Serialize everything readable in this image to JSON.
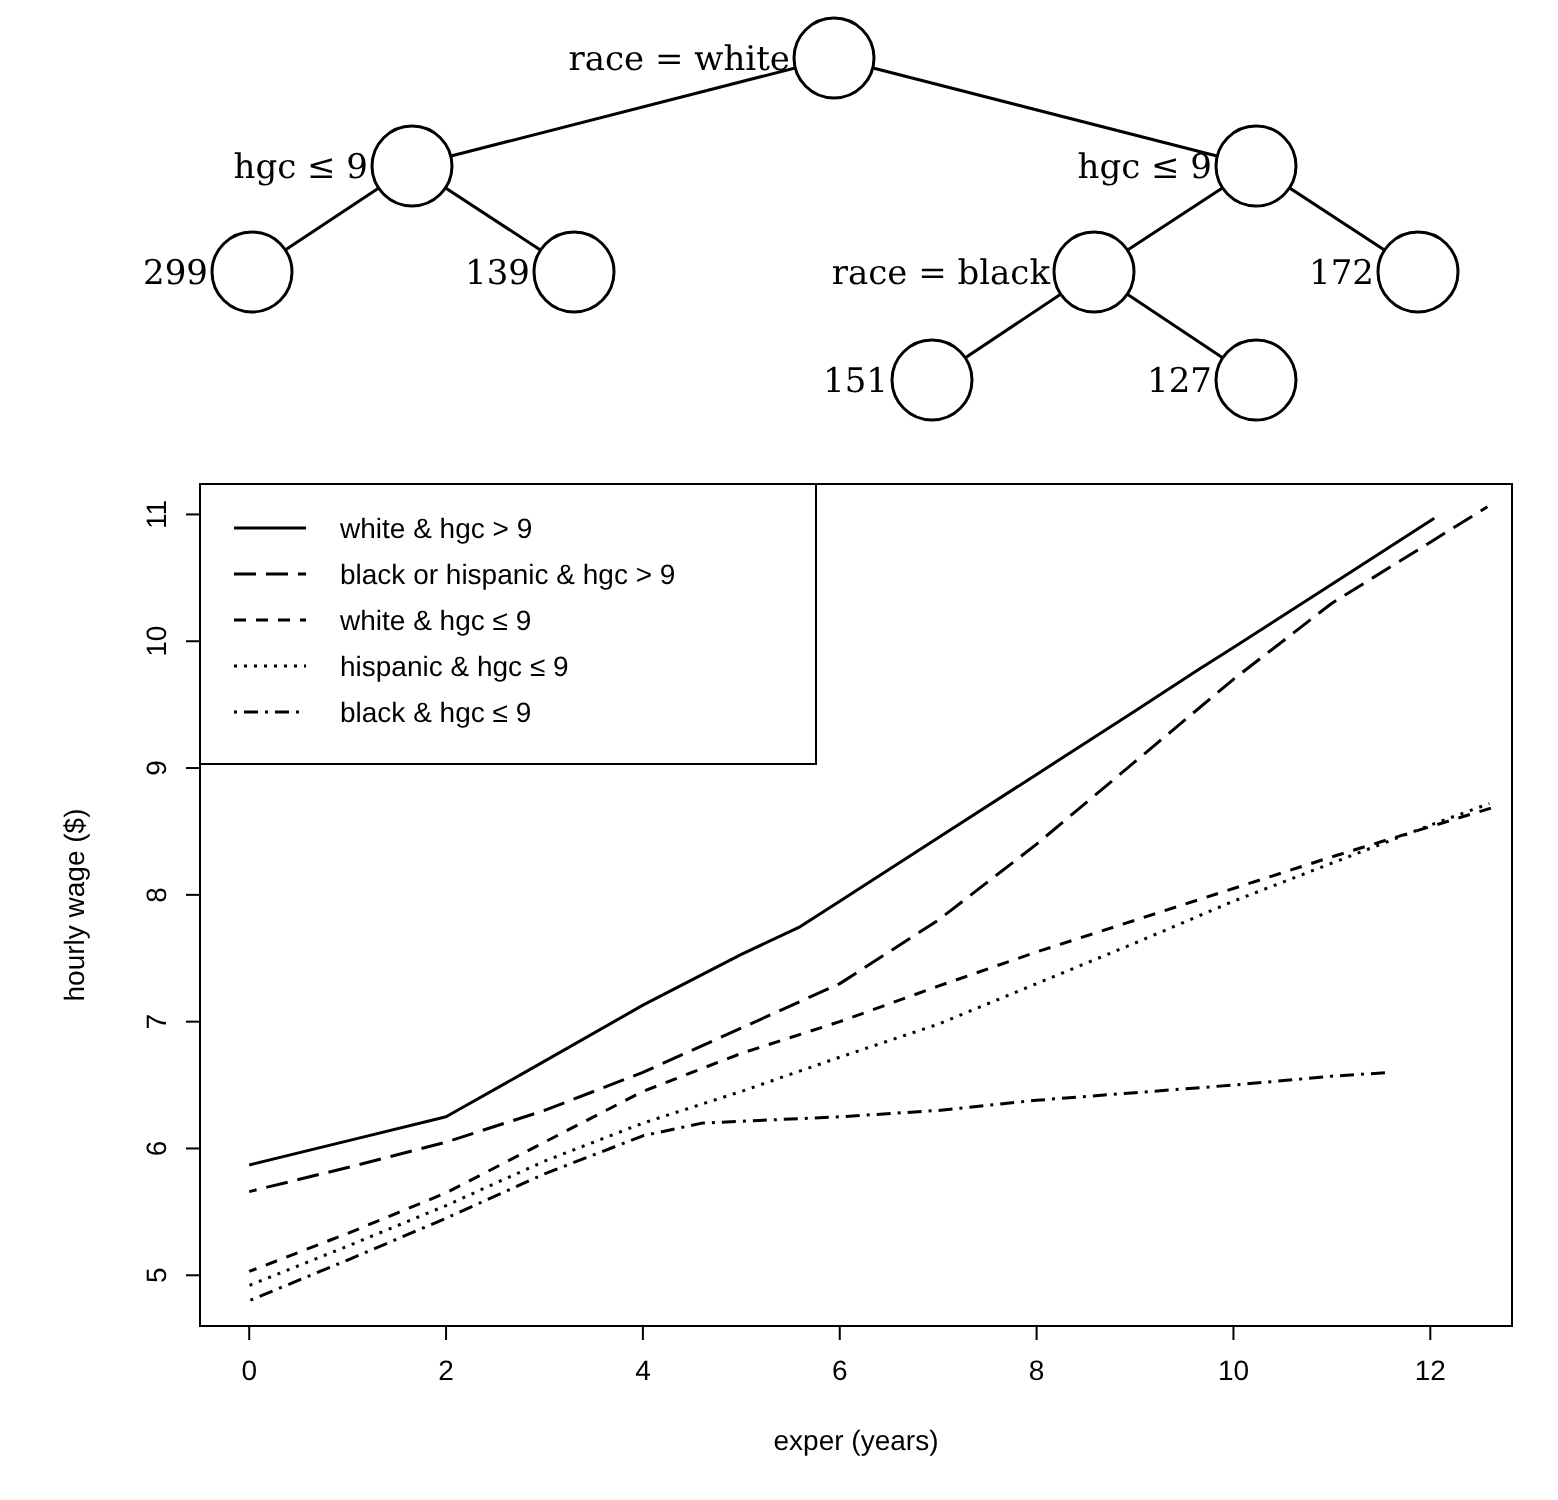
{
  "chart_data": {
    "type": "line",
    "xlabel": "exper (years)",
    "ylabel": "hourly wage ($)",
    "xlim": [
      -0.5,
      12.83
    ],
    "xticks": [
      0,
      2,
      4,
      6,
      8,
      10,
      12
    ],
    "ylim": [
      4.6,
      11.24
    ],
    "yticks": [
      5,
      6,
      7,
      8,
      9,
      10,
      11
    ],
    "legend": "top left",
    "grid": false,
    "marker": "none",
    "annotations": [
      "race = white",
      "hgc ≤ 9",
      "hgc ≤ 9",
      "299",
      "139",
      "race = black",
      "172",
      "151",
      "127"
    ],
    "series": [
      {
        "name": "white & hgc > 9",
        "color": "#000000",
        "line_style": "solid",
        "x": [
          0,
          1,
          2,
          2.8,
          4,
          5,
          5.6,
          6,
          7,
          8,
          9,
          9.65,
          10,
          11,
          12.04
        ],
        "values": [
          5.87,
          6.06,
          6.25,
          6.6,
          7.13,
          7.53,
          7.75,
          7.95,
          8.45,
          8.95,
          9.45,
          9.78,
          9.95,
          10.45,
          10.97
        ]
      },
      {
        "name": "black or hispanic & hgc > 9",
        "color": "#000000",
        "line_style": "longdash",
        "x": [
          0,
          1,
          2,
          3,
          4,
          5,
          6,
          7,
          8,
          9,
          10,
          11,
          12.58
        ],
        "values": [
          5.66,
          5.85,
          6.05,
          6.3,
          6.6,
          6.95,
          7.3,
          7.8,
          8.4,
          9.05,
          9.7,
          10.3,
          11.06
        ]
      },
      {
        "name": "white & hgc ≤ 9",
        "color": "#000000",
        "line_style": "dashed",
        "x": [
          0,
          1,
          2,
          3,
          4,
          5,
          6,
          7,
          8,
          9,
          10,
          11,
          12.64
        ],
        "values": [
          5.03,
          5.33,
          5.65,
          6.05,
          6.45,
          6.75,
          7.0,
          7.28,
          7.55,
          7.8,
          8.05,
          8.3,
          8.69
        ]
      },
      {
        "name": "hispanic & hgc ≤ 9",
        "color": "#000000",
        "line_style": "dotted",
        "x": [
          0,
          1,
          2,
          3,
          4,
          5,
          6,
          7,
          8,
          9,
          10,
          11,
          12,
          12.6
        ],
        "values": [
          4.92,
          5.23,
          5.55,
          5.9,
          6.2,
          6.45,
          6.72,
          6.98,
          7.3,
          7.62,
          7.95,
          8.25,
          8.55,
          8.72
        ]
      },
      {
        "name": "black & hgc ≤ 9",
        "color": "#000000",
        "line_style": "dotdash",
        "x": [
          0,
          1,
          2,
          3,
          4,
          4.6,
          6,
          7,
          8,
          9,
          10,
          11,
          11.6
        ],
        "values": [
          4.8,
          5.12,
          5.45,
          5.8,
          6.1,
          6.2,
          6.25,
          6.3,
          6.38,
          6.44,
          6.5,
          6.57,
          6.6
        ]
      }
    ]
  }
}
